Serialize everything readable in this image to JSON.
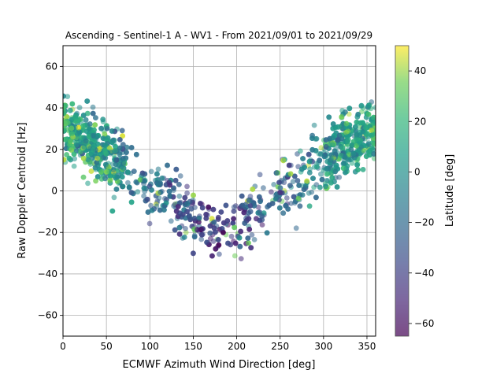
{
  "chart_data": {
    "type": "scatter",
    "title": "Ascending - Sentinel-1 A - WV1 - From 2021/09/01 to 2021/09/29",
    "xlabel": "ECMWF Azimuth Wind Direction [deg]",
    "ylabel": "Raw Doppler Centroid [Hz]",
    "xlim": [
      0,
      360
    ],
    "ylim": [
      -70,
      70
    ],
    "xticks": [
      0,
      50,
      100,
      150,
      200,
      250,
      300,
      350
    ],
    "yticks": [
      -60,
      -40,
      -20,
      0,
      20,
      40,
      60
    ],
    "grid": true,
    "colorbar": {
      "label": "Latitude [deg]",
      "colormap": "viridis",
      "range": [
        -65,
        50
      ],
      "ticks": [
        -60,
        -40,
        -20,
        0,
        20,
        40
      ]
    },
    "point_alpha": 0.55,
    "trend": {
      "description": "V-shaped dependence of Doppler centroid on wind direction",
      "minimum_near_x": 180,
      "minimum_y": -22,
      "y_at_x_0": 32,
      "y_at_x_360": 32
    },
    "approx_point_count": 5000
  }
}
